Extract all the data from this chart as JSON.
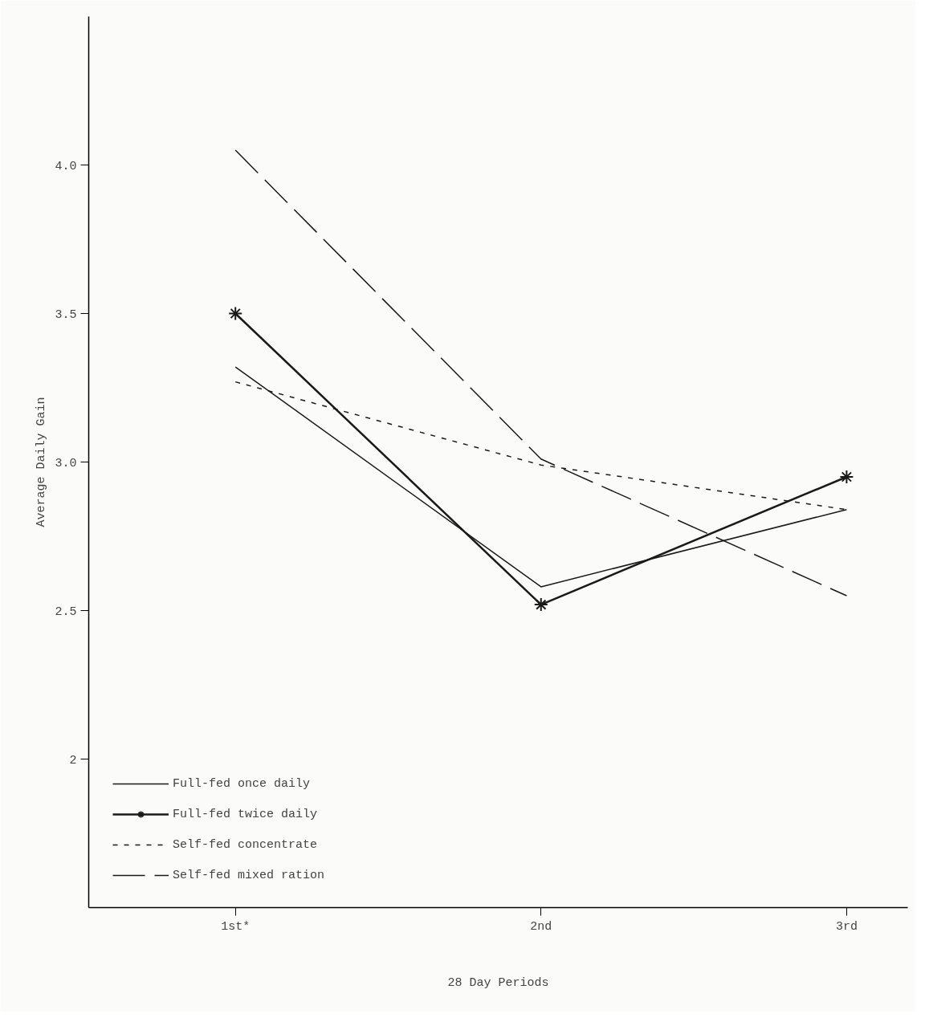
{
  "chart_data": {
    "type": "line",
    "xlabel": "28 Day Periods",
    "ylabel": "Average Daily Gain",
    "categories": [
      "1st*",
      "2nd",
      "3rd"
    ],
    "ylim": [
      1.5,
      4.5
    ],
    "yticks": [
      {
        "value": 2,
        "label": "2"
      },
      {
        "value": 2.5,
        "label": "2.5"
      },
      {
        "value": 3,
        "label": "3.0"
      },
      {
        "value": 3.5,
        "label": "3.5"
      },
      {
        "value": 4,
        "label": "4.0"
      }
    ],
    "grid": false,
    "legend": "bottom left",
    "series": [
      {
        "name": "Full-fed once daily",
        "color": "#1a1a1a",
        "values": [
          3.32,
          2.58,
          2.84
        ],
        "line_style": "solid",
        "marker": "none"
      },
      {
        "name": "Full-fed twice daily",
        "color": "#1a1a1a",
        "values": [
          3.5,
          2.52,
          2.95
        ],
        "line_style": "solid",
        "marker": "cross"
      },
      {
        "name": "Self-fed concentrate",
        "color": "#1a1a1a",
        "values": [
          3.27,
          2.99,
          2.84
        ],
        "line_style": "dashed",
        "marker": "none"
      },
      {
        "name": "Self-fed mixed ration",
        "color": "#1a1a1a",
        "values": [
          4.05,
          3.01,
          2.55
        ],
        "line_style": "longdash",
        "marker": "none"
      }
    ]
  }
}
